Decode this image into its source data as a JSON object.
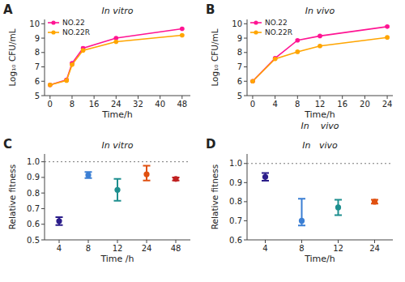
{
  "chart_data": [
    {
      "type": "line",
      "title": "In vitro",
      "panel_label": "A",
      "x": [
        0,
        6,
        8,
        12,
        24,
        48
      ],
      "series": [
        {
          "name": "NO.22",
          "color": "#FF1493",
          "marker": "circle",
          "values": [
            5.75,
            6.1,
            7.25,
            8.3,
            9.0,
            9.65
          ],
          "errors": [
            0.05,
            0.07,
            0.05,
            0.08,
            0.05,
            0.05
          ]
        },
        {
          "name": "NO.22R",
          "color": "#FFA500",
          "marker": "circle",
          "values": [
            5.75,
            6.05,
            7.15,
            8.15,
            8.75,
            9.2
          ],
          "errors": [
            0.05,
            0.07,
            0.05,
            0.08,
            0.05,
            0.05
          ]
        }
      ],
      "xlabel": "Time/h",
      "ylabel": "Log₁₀ CFU/mL",
      "xlim": [
        -2,
        51
      ],
      "xticks": [
        0,
        8,
        16,
        24,
        32,
        40,
        48
      ],
      "ylim": [
        5,
        10.3
      ],
      "yticks": [
        5,
        6,
        7,
        8,
        9,
        10
      ],
      "legend": "upper left",
      "grid": false
    },
    {
      "type": "line",
      "title": "In vivo",
      "panel_label": "B",
      "annotation": "In    vivo",
      "x": [
        0,
        4,
        8,
        12,
        24
      ],
      "series": [
        {
          "name": "NO.22",
          "color": "#FF1493",
          "marker": "circle",
          "values": [
            6.0,
            7.6,
            8.85,
            9.15,
            9.8
          ],
          "errors": [
            0.04,
            0.05,
            0.07,
            0.05,
            0.05
          ]
        },
        {
          "name": "NO.22R",
          "color": "#FFA500",
          "marker": "circle",
          "values": [
            6.0,
            7.55,
            8.05,
            8.45,
            9.05
          ],
          "errors": [
            0.04,
            0.05,
            0.07,
            0.05,
            0.05
          ]
        }
      ],
      "xlabel": "Time/h",
      "ylabel": "Log₁₀ CFU/mL",
      "xlim": [
        -1,
        25
      ],
      "xticks": [
        0,
        4,
        8,
        12,
        16,
        20,
        24
      ],
      "ylim": [
        5,
        10.3
      ],
      "yticks": [
        5,
        6,
        7,
        8,
        9,
        10
      ],
      "legend": "upper left",
      "grid": false
    },
    {
      "type": "scatter",
      "title": "In vitro",
      "panel_label": "C",
      "categories": [
        "4",
        "8",
        "12",
        "24",
        "48"
      ],
      "values": [
        0.62,
        0.915,
        0.82,
        0.92,
        0.89
      ],
      "error_low": [
        0.025,
        0.02,
        0.07,
        0.04,
        0.01
      ],
      "error_high": [
        0.025,
        0.02,
        0.07,
        0.055,
        0.01
      ],
      "colors": [
        "#2B1D8A",
        "#3B7FD4",
        "#1E8F8F",
        "#E05010",
        "#C02020"
      ],
      "marker": "circle",
      "reference_line": 1.0,
      "xlabel": "Time /h",
      "ylabel": "Relative fitness",
      "ylim": [
        0.5,
        1.05
      ],
      "yticks": [
        0.5,
        0.6,
        0.7,
        0.8,
        0.9,
        {
          "value": 1.0,
          "label": "1.0"
        }
      ],
      "grid": false
    },
    {
      "type": "scatter",
      "title": "In   vivo",
      "panel_label": "D",
      "categories": [
        "4",
        "8",
        "12",
        "24"
      ],
      "values": [
        0.93,
        0.7,
        0.77,
        0.8
      ],
      "error_low": [
        0.02,
        0.025,
        0.04,
        0.01
      ],
      "error_high": [
        0.02,
        0.115,
        0.04,
        0.01
      ],
      "colors": [
        "#2B1D8A",
        "#3B7FD4",
        "#1E8F8F",
        "#E05010"
      ],
      "marker": "circle",
      "reference_line": 1.0,
      "xlabel": "Time/h",
      "ylabel": "Relative fitness",
      "ylim": [
        0.6,
        1.05
      ],
      "yticks": [
        0.6,
        0.7,
        0.8,
        0.9,
        {
          "value": 1.0,
          "label": "1.0"
        }
      ],
      "grid": false
    }
  ]
}
